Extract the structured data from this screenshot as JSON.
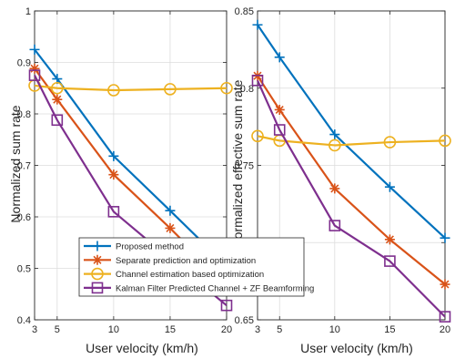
{
  "chart_data": [
    {
      "type": "line",
      "xlabel": "User velocity (km/h)",
      "ylabel": "Normalized sum rate",
      "x": [
        3,
        5,
        10,
        15,
        20
      ],
      "xticks": [
        "3",
        "5",
        "10",
        "15",
        "20"
      ],
      "yticks": [
        "0.4",
        "0.5",
        "0.6",
        "0.7",
        "0.8",
        "0.9",
        "1"
      ],
      "xlim": [
        3,
        20
      ],
      "ylim": [
        0.4,
        1.0
      ],
      "grid": true,
      "series": [
        {
          "name": "Proposed method",
          "values": [
            0.925,
            0.868,
            0.718,
            0.612,
            0.505
          ],
          "color": "#0072BD",
          "marker": "plus"
        },
        {
          "name": "Separate prediction and optimization",
          "values": [
            0.888,
            0.828,
            0.682,
            0.578,
            0.468
          ],
          "color": "#D95319",
          "marker": "asterisk"
        },
        {
          "name": "Channel estimation based optimization",
          "values": [
            0.855,
            0.85,
            0.846,
            0.848,
            0.85
          ],
          "color": "#EDB120",
          "marker": "circle"
        },
        {
          "name": "Kalman Filter Predicted Channel + ZF Beamforming",
          "values": [
            0.875,
            0.788,
            0.61,
            0.518,
            0.428
          ],
          "color": "#7E2F8E",
          "marker": "square"
        }
      ]
    },
    {
      "type": "line",
      "xlabel": "User velocity (km/h)",
      "ylabel": "Normalized effective sum rate",
      "x": [
        3,
        5,
        10,
        15,
        20
      ],
      "xticks": [
        "3",
        "5",
        "10",
        "15",
        "20"
      ],
      "yticks": [
        "0.65",
        "0.7",
        "0.75",
        "0.8",
        "0.85"
      ],
      "xlim": [
        3,
        20
      ],
      "ylim": [
        0.65,
        0.85
      ],
      "grid": true,
      "series": [
        {
          "name": "Proposed method",
          "values": [
            0.841,
            0.82,
            0.77,
            0.736,
            0.703
          ],
          "color": "#0072BD",
          "marker": "plus"
        },
        {
          "name": "Separate prediction and optimization",
          "values": [
            0.808,
            0.786,
            0.735,
            0.702,
            0.673
          ],
          "color": "#D95319",
          "marker": "asterisk"
        },
        {
          "name": "Channel estimation based optimization",
          "values": [
            0.769,
            0.766,
            0.763,
            0.765,
            0.766
          ],
          "color": "#EDB120",
          "marker": "circle"
        },
        {
          "name": "Kalman Filter Predicted Channel + ZF Beamforming",
          "values": [
            0.805,
            0.773,
            0.711,
            0.688,
            0.652
          ],
          "color": "#7E2F8E",
          "marker": "square"
        }
      ]
    }
  ],
  "legend": {
    "placement": "bottom-center",
    "entries": [
      "Proposed method",
      "Separate prediction and optimization",
      "Channel estimation based optimization",
      "Kalman Filter Predicted Channel + ZF Beamforming"
    ]
  }
}
